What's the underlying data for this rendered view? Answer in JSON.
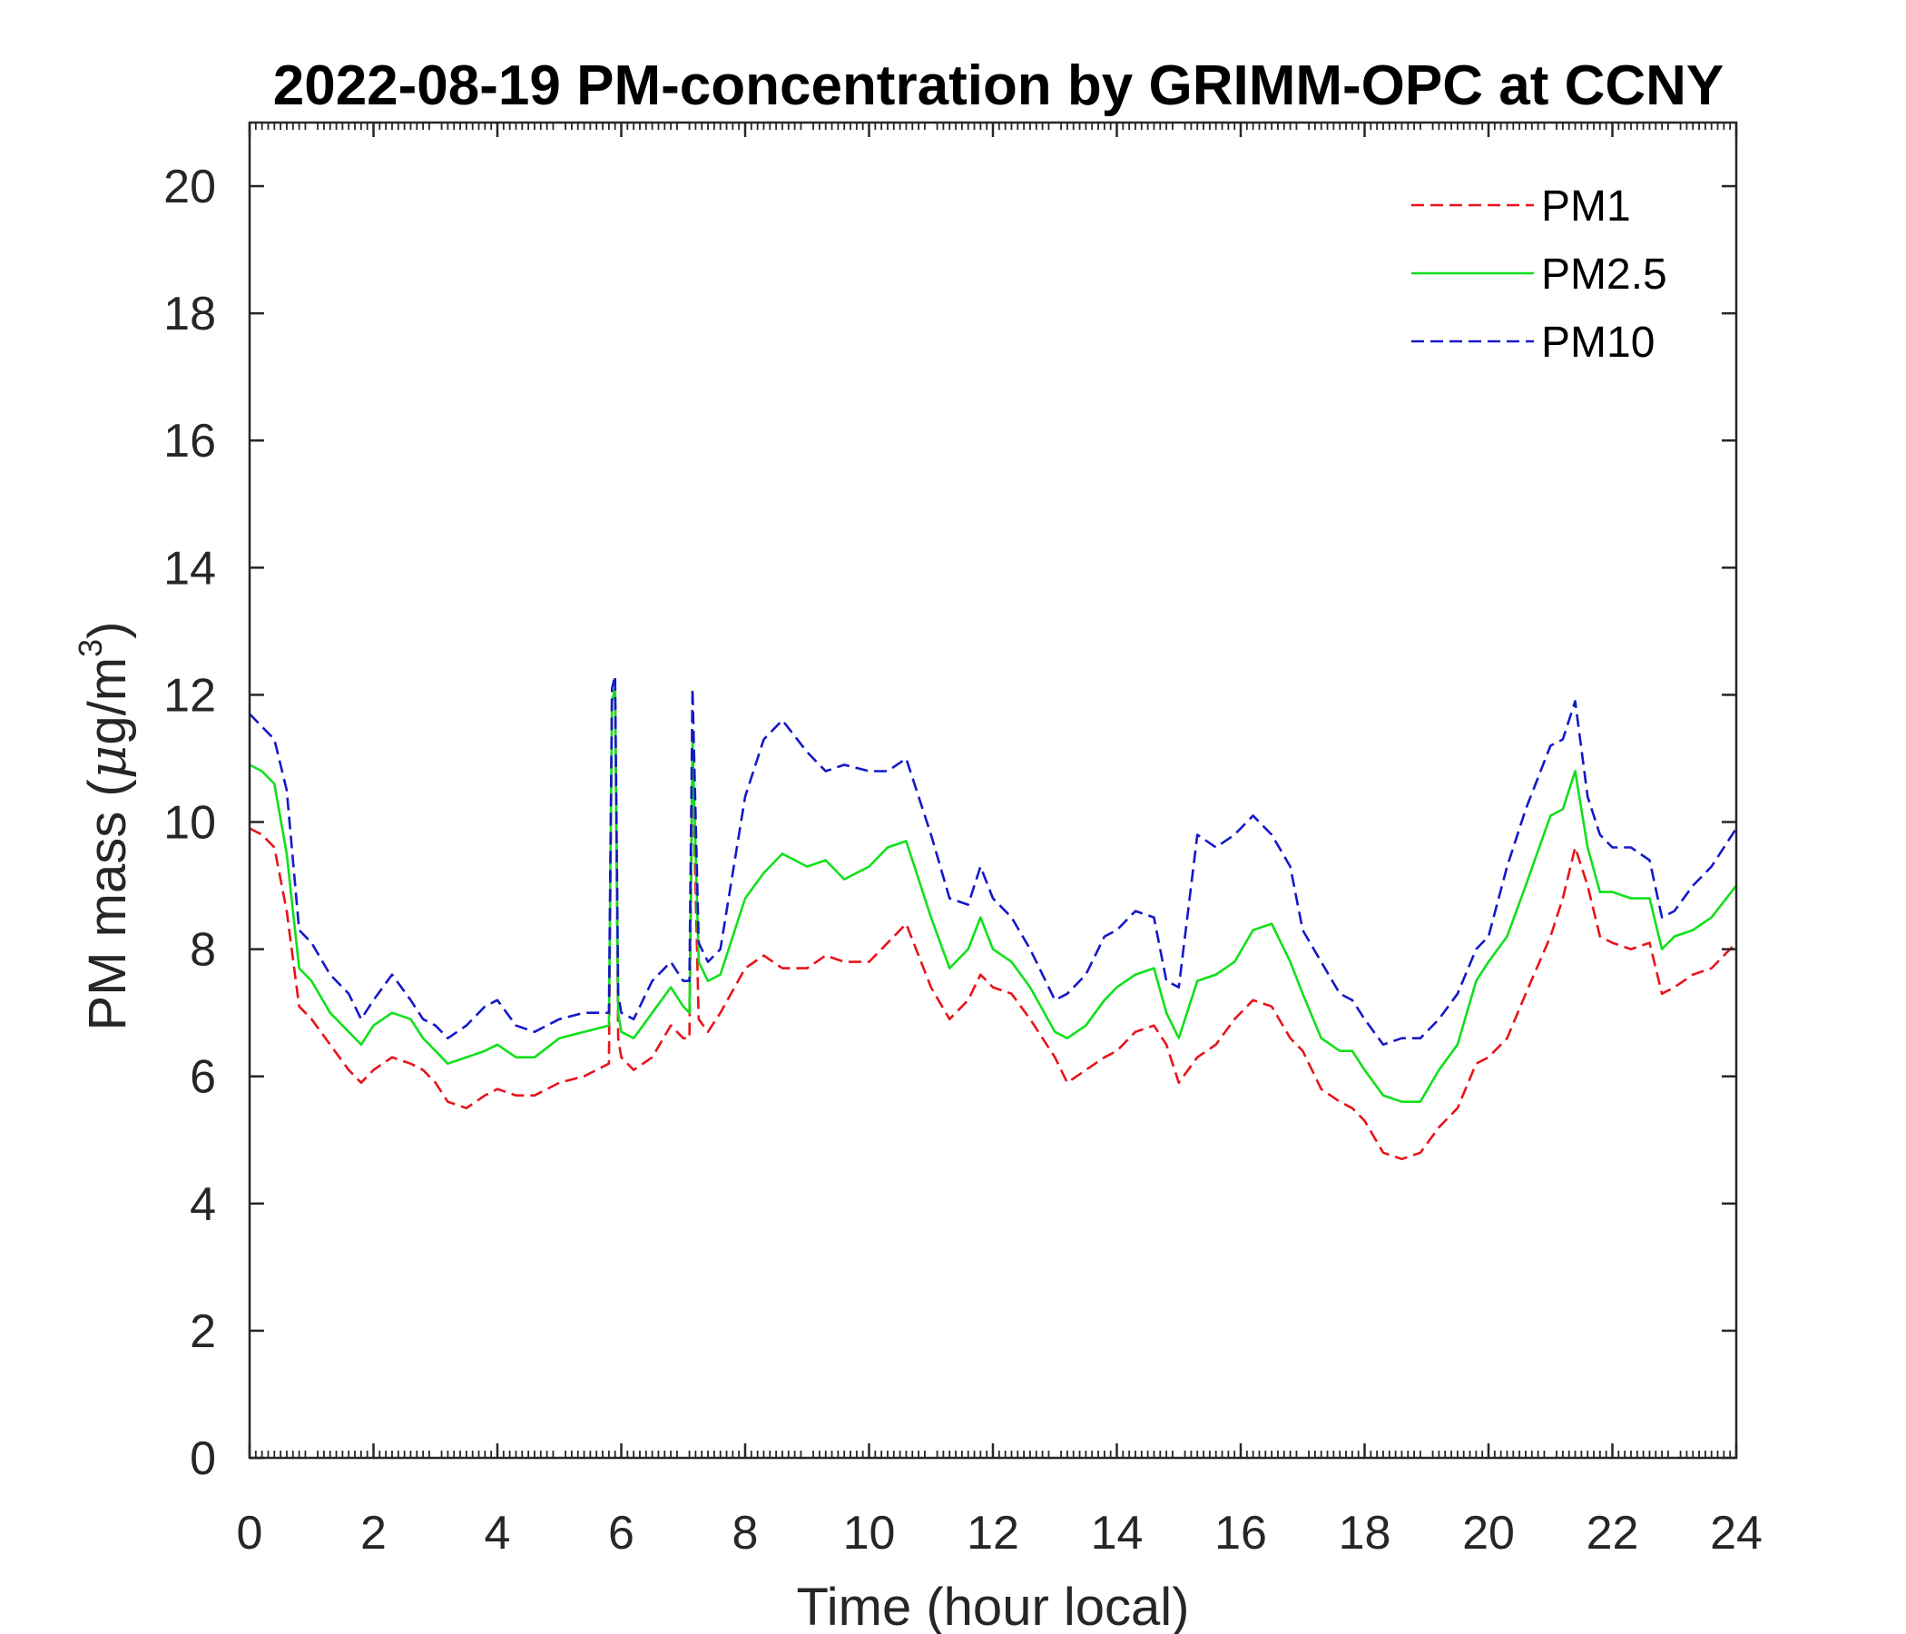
{
  "chart_data": {
    "type": "line",
    "title": "2022-08-19 PM-concentration by GRIMM-OPC at CCNY",
    "xlabel": "Time (hour local)",
    "ylabel_main": "PM mass (",
    "ylabel_mu": "μ",
    "ylabel_unit": "g/m",
    "ylabel_sup": "3",
    "ylabel_close": ")",
    "xlim": [
      0,
      24
    ],
    "ylim": [
      0,
      21
    ],
    "xticks": [
      "0",
      "2",
      "4",
      "6",
      "8",
      "10",
      "12",
      "14",
      "16",
      "18",
      "20",
      "22",
      "24"
    ],
    "yticks": [
      "0",
      "2",
      "4",
      "6",
      "8",
      "10",
      "12",
      "14",
      "16",
      "18",
      "20"
    ],
    "legend_position": "top-right",
    "grid": false,
    "series": [
      {
        "name": "PM1",
        "color": "#e8131a",
        "dash": "dashed",
        "x": [
          0,
          0.2,
          0.4,
          0.6,
          0.8,
          1.0,
          1.3,
          1.6,
          1.8,
          2.0,
          2.3,
          2.6,
          2.8,
          3.0,
          3.2,
          3.5,
          3.8,
          4.0,
          4.3,
          4.6,
          5.0,
          5.4,
          5.8,
          5.85,
          5.9,
          5.95,
          6.0,
          6.2,
          6.5,
          6.8,
          7.0,
          7.1,
          7.15,
          7.25,
          7.4,
          7.6,
          8.0,
          8.3,
          8.6,
          9.0,
          9.3,
          9.6,
          10.0,
          10.3,
          10.6,
          11.0,
          11.3,
          11.6,
          11.8,
          12.0,
          12.3,
          12.6,
          13.0,
          13.2,
          13.5,
          13.8,
          14.0,
          14.3,
          14.6,
          14.8,
          15.0,
          15.3,
          15.6,
          15.9,
          16.2,
          16.5,
          16.8,
          17.0,
          17.3,
          17.6,
          17.8,
          18.0,
          18.3,
          18.6,
          18.9,
          19.2,
          19.5,
          19.8,
          20.0,
          20.3,
          20.6,
          21.0,
          21.2,
          21.4,
          21.6,
          21.8,
          22.0,
          22.3,
          22.6,
          22.8,
          23.0,
          23.3,
          23.6,
          24.0
        ],
        "values": [
          9.9,
          9.8,
          9.6,
          8.6,
          7.1,
          6.9,
          6.5,
          6.1,
          5.9,
          6.1,
          6.3,
          6.2,
          6.1,
          5.9,
          5.6,
          5.5,
          5.7,
          5.8,
          5.7,
          5.7,
          5.9,
          6.0,
          6.2,
          11.9,
          12.1,
          6.6,
          6.3,
          6.1,
          6.3,
          6.8,
          6.6,
          6.6,
          11.0,
          6.9,
          6.7,
          7.0,
          7.7,
          7.9,
          7.7,
          7.7,
          7.9,
          7.8,
          7.8,
          8.1,
          8.4,
          7.4,
          6.9,
          7.2,
          7.6,
          7.4,
          7.3,
          6.9,
          6.3,
          5.9,
          6.1,
          6.3,
          6.4,
          6.7,
          6.8,
          6.5,
          5.9,
          6.3,
          6.5,
          6.9,
          7.2,
          7.1,
          6.6,
          6.4,
          5.8,
          5.6,
          5.5,
          5.3,
          4.8,
          4.7,
          4.8,
          5.2,
          5.5,
          6.2,
          6.3,
          6.6,
          7.3,
          8.2,
          8.8,
          9.6,
          9.0,
          8.2,
          8.1,
          8.0,
          8.1,
          7.3,
          7.4,
          7.6,
          7.7,
          8.1
        ]
      },
      {
        "name": "PM2.5",
        "color": "#11e01a",
        "dash": "solid",
        "x": [
          0,
          0.2,
          0.4,
          0.6,
          0.8,
          1.0,
          1.3,
          1.6,
          1.8,
          2.0,
          2.3,
          2.6,
          2.8,
          3.0,
          3.2,
          3.5,
          3.8,
          4.0,
          4.3,
          4.6,
          5.0,
          5.4,
          5.8,
          5.85,
          5.9,
          5.95,
          6.0,
          6.2,
          6.5,
          6.8,
          7.0,
          7.1,
          7.15,
          7.25,
          7.4,
          7.6,
          8.0,
          8.3,
          8.6,
          9.0,
          9.3,
          9.6,
          10.0,
          10.3,
          10.6,
          11.0,
          11.3,
          11.6,
          11.8,
          12.0,
          12.3,
          12.6,
          13.0,
          13.2,
          13.5,
          13.8,
          14.0,
          14.3,
          14.6,
          14.8,
          15.0,
          15.3,
          15.6,
          15.9,
          16.2,
          16.5,
          16.8,
          17.0,
          17.3,
          17.6,
          17.8,
          18.0,
          18.3,
          18.6,
          18.9,
          19.2,
          19.5,
          19.8,
          20.0,
          20.3,
          20.6,
          21.0,
          21.2,
          21.4,
          21.6,
          21.8,
          22.0,
          22.3,
          22.6,
          22.8,
          23.0,
          23.3,
          23.6,
          24.0
        ],
        "values": [
          10.9,
          10.8,
          10.6,
          9.5,
          7.7,
          7.5,
          7.0,
          6.7,
          6.5,
          6.8,
          7.0,
          6.9,
          6.6,
          6.4,
          6.2,
          6.3,
          6.4,
          6.5,
          6.3,
          6.3,
          6.6,
          6.7,
          6.8,
          11.9,
          12.1,
          7.0,
          6.7,
          6.6,
          7.0,
          7.4,
          7.1,
          7.0,
          11.3,
          7.8,
          7.5,
          7.6,
          8.8,
          9.2,
          9.5,
          9.3,
          9.4,
          9.1,
          9.3,
          9.6,
          9.7,
          8.5,
          7.7,
          8.0,
          8.5,
          8.0,
          7.8,
          7.4,
          6.7,
          6.6,
          6.8,
          7.2,
          7.4,
          7.6,
          7.7,
          7.0,
          6.6,
          7.5,
          7.6,
          7.8,
          8.3,
          8.4,
          7.8,
          7.3,
          6.6,
          6.4,
          6.4,
          6.1,
          5.7,
          5.6,
          5.6,
          6.1,
          6.5,
          7.5,
          7.8,
          8.2,
          9.0,
          10.1,
          10.2,
          10.8,
          9.6,
          8.9,
          8.9,
          8.8,
          8.8,
          8.0,
          8.2,
          8.3,
          8.5,
          9.0
        ]
      },
      {
        "name": "PM10",
        "color": "#1418c8",
        "dash": "dashed",
        "x": [
          0,
          0.2,
          0.4,
          0.6,
          0.8,
          1.0,
          1.3,
          1.6,
          1.8,
          2.0,
          2.3,
          2.6,
          2.8,
          3.0,
          3.2,
          3.5,
          3.8,
          4.0,
          4.3,
          4.6,
          5.0,
          5.4,
          5.8,
          5.85,
          5.9,
          5.95,
          6.0,
          6.2,
          6.5,
          6.8,
          7.0,
          7.1,
          7.15,
          7.25,
          7.4,
          7.6,
          8.0,
          8.3,
          8.6,
          9.0,
          9.3,
          9.6,
          10.0,
          10.3,
          10.6,
          11.0,
          11.3,
          11.6,
          11.8,
          12.0,
          12.3,
          12.6,
          13.0,
          13.2,
          13.5,
          13.8,
          14.0,
          14.3,
          14.6,
          14.8,
          15.0,
          15.3,
          15.6,
          15.9,
          16.2,
          16.5,
          16.8,
          17.0,
          17.3,
          17.6,
          17.8,
          18.0,
          18.3,
          18.6,
          18.9,
          19.2,
          19.5,
          19.8,
          20.0,
          20.3,
          20.6,
          21.0,
          21.2,
          21.4,
          21.6,
          21.8,
          22.0,
          22.3,
          22.6,
          22.8,
          23.0,
          23.3,
          23.6,
          24.0
        ],
        "values": [
          11.7,
          11.5,
          11.3,
          10.5,
          8.3,
          8.1,
          7.6,
          7.3,
          6.9,
          7.2,
          7.6,
          7.2,
          6.9,
          6.8,
          6.6,
          6.8,
          7.1,
          7.2,
          6.8,
          6.7,
          6.9,
          7.0,
          7.0,
          12.1,
          12.3,
          7.3,
          7.0,
          6.9,
          7.5,
          7.8,
          7.5,
          7.5,
          12.1,
          8.1,
          7.8,
          8.0,
          10.4,
          11.3,
          11.6,
          11.1,
          10.8,
          10.9,
          10.8,
          10.8,
          11.0,
          9.8,
          8.8,
          8.7,
          9.3,
          8.8,
          8.5,
          8.0,
          7.2,
          7.3,
          7.6,
          8.2,
          8.3,
          8.6,
          8.5,
          7.5,
          7.4,
          9.8,
          9.6,
          9.8,
          10.1,
          9.8,
          9.3,
          8.3,
          7.8,
          7.3,
          7.2,
          6.9,
          6.5,
          6.6,
          6.6,
          6.9,
          7.3,
          8.0,
          8.2,
          9.3,
          10.2,
          11.2,
          11.3,
          11.9,
          10.4,
          9.8,
          9.6,
          9.6,
          9.4,
          8.5,
          8.6,
          9.0,
          9.3,
          9.9
        ]
      }
    ]
  }
}
